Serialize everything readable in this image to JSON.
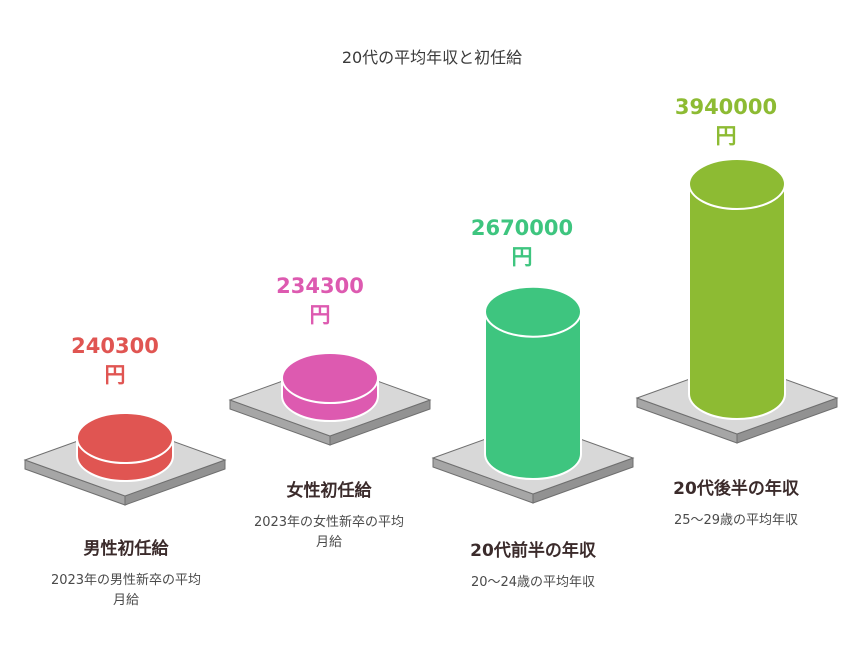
{
  "chart_data": {
    "type": "bar",
    "title": "20代の平均年収と初任給",
    "unit": "円",
    "categories": [
      "男性初任給",
      "女性初任給",
      "20代前半の年収",
      "20代後半の年収"
    ],
    "values": [
      240300,
      234300,
      2670000,
      3940000
    ],
    "descriptions": [
      "2023年の男性新卒の平均月給",
      "2023年の女性新卒の平均月給",
      "20〜24歳の平均年収",
      "25〜29歳の平均年収"
    ],
    "value_labels": [
      "240300",
      "234300",
      "2670000",
      "3940000"
    ],
    "colors": [
      "#e05552",
      "#dd5ab0",
      "#3ec57f",
      "#8dbb33"
    ]
  },
  "colors": {
    "pedestal_top": "#d8d8d8",
    "pedestal_side": "#a6a6a6",
    "pedestal_edge": "#6f6f6f"
  }
}
